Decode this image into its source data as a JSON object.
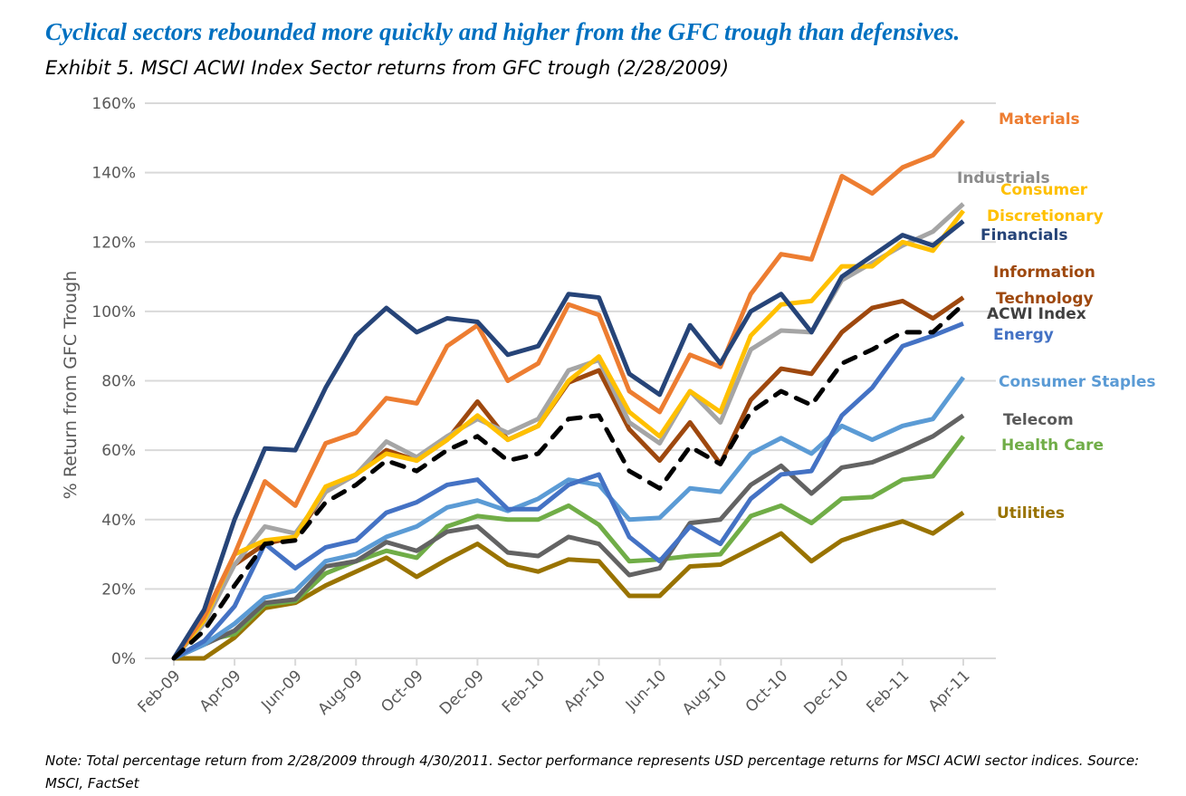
{
  "headline": "Cyclical sectors rebounded more quickly and higher from the GFC trough than defensives.",
  "subtitle": "Exhibit 5. MSCI ACWI Index Sector returns from GFC trough (2/28/2009)",
  "note": "Note: Total percentage return from 2/28/2009 through 4/30/2011.  Sector performance represents USD percentage returns for MSCI ACWI sector indices.  Source: MSCI, FactSet",
  "chart_data": {
    "type": "line",
    "title": "",
    "xlabel": "",
    "ylabel": "% Return from GFC Trough",
    "ylim": [
      0,
      160
    ],
    "yticks": [
      "0%",
      "20%",
      "40%",
      "60%",
      "80%",
      "100%",
      "120%",
      "140%",
      "160%"
    ],
    "grid": true,
    "legend": "direct labels at right",
    "x": [
      "Feb-09",
      "Mar-09",
      "Apr-09",
      "May-09",
      "Jun-09",
      "Jul-09",
      "Aug-09",
      "Sep-09",
      "Oct-09",
      "Nov-09",
      "Dec-09",
      "Jan-10",
      "Feb-10",
      "Mar-10",
      "Apr-10",
      "May-10",
      "Jun-10",
      "Jul-10",
      "Aug-10",
      "Sep-10",
      "Oct-10",
      "Nov-10",
      "Dec-10",
      "Jan-11",
      "Feb-11",
      "Mar-11",
      "Apr-11"
    ],
    "xticks": [
      "Feb-09",
      "Apr-09",
      "Jun-09",
      "Aug-09",
      "Oct-09",
      "Dec-09",
      "Feb-10",
      "Apr-10",
      "Jun-10",
      "Aug-10",
      "Oct-10",
      "Dec-10",
      "Feb-11",
      "Apr-11"
    ],
    "series": [
      {
        "name": "Materials",
        "label_lines": [
          "Materials"
        ],
        "color": "#ED7D31",
        "label_color": "#ED7D31",
        "values": [
          0,
          12,
          30,
          51,
          44,
          62,
          65,
          75,
          73.5,
          90,
          96,
          80,
          85,
          102,
          99,
          77,
          71,
          87.5,
          84,
          105,
          116.5,
          115,
          139,
          134,
          141.5,
          145,
          155
        ]
      },
      {
        "name": "Industrials",
        "label_lines": [
          "Industrials"
        ],
        "color": "#A5A5A5",
        "label_color": "#8C8C8C",
        "values": [
          0,
          10,
          27,
          38,
          36,
          48,
          53,
          62.5,
          58,
          64,
          69,
          65,
          69,
          83,
          86,
          68,
          62,
          77,
          68,
          89,
          94.5,
          94,
          109,
          114,
          119,
          123,
          131
        ]
      },
      {
        "name": "Consumer Discretionary",
        "label_lines": [
          "Consumer",
          "Discretionary"
        ],
        "color": "#FFC000",
        "label_color": "#FFC000",
        "values": [
          0,
          11,
          30,
          34,
          35,
          49.5,
          53,
          59,
          57,
          63,
          70,
          63,
          67,
          80,
          87,
          71,
          64,
          77,
          71,
          93,
          102,
          103,
          113,
          113,
          120,
          117.5,
          129
        ]
      },
      {
        "name": "Financials",
        "label_lines": [
          "Financials"
        ],
        "color": "#264478",
        "label_color": "#264478",
        "values": [
          0,
          14,
          40,
          60.5,
          60,
          78,
          93,
          101,
          94,
          98,
          97,
          87.5,
          90,
          105,
          104,
          82,
          76,
          96,
          85,
          100,
          105,
          94,
          110,
          116,
          122,
          119,
          126
        ]
      },
      {
        "name": "Information Technology",
        "label_lines": [
          "Information",
          "Technology"
        ],
        "color": "#9E480E",
        "label_color": "#9E480E",
        "values": [
          0,
          12,
          27,
          33,
          35,
          48,
          53,
          60,
          57,
          63,
          74,
          63,
          67,
          79.5,
          83,
          66,
          57,
          68,
          56,
          74.5,
          83.5,
          82,
          94,
          101,
          103,
          98,
          104
        ]
      },
      {
        "name": "ACWI Index",
        "label_lines": [
          "ACWI Index"
        ],
        "color": "#000000",
        "label_color": "#404040",
        "dashed": true,
        "values": [
          0,
          8,
          21,
          33,
          34,
          45,
          50,
          57,
          54,
          60,
          64,
          57,
          59,
          69,
          70,
          54,
          49,
          61,
          56,
          71,
          77,
          73,
          85,
          89,
          94,
          94,
          102
        ]
      },
      {
        "name": "Energy",
        "label_lines": [
          "Energy"
        ],
        "color": "#4472C4",
        "label_color": "#4472C4",
        "values": [
          0,
          5,
          15,
          33,
          26,
          32,
          34,
          42,
          45,
          50,
          51.5,
          43,
          43,
          50,
          53,
          35,
          28,
          38,
          33,
          46,
          53,
          54,
          70,
          78,
          90,
          93,
          96.5
        ]
      },
      {
        "name": "Consumer Staples",
        "label_lines": [
          "Consumer Staples"
        ],
        "color": "#5B9BD5",
        "label_color": "#5B9BD5",
        "values": [
          0,
          4,
          10,
          17.5,
          19.5,
          28,
          30,
          35,
          38,
          43.5,
          45.5,
          42.5,
          46,
          51.5,
          50,
          40,
          40.5,
          49,
          48,
          59,
          63.5,
          59,
          67,
          63,
          67,
          69,
          81
        ]
      },
      {
        "name": "Telecom",
        "label_lines": [
          "Telecom"
        ],
        "color": "#636363",
        "label_color": "#595959",
        "values": [
          0,
          4,
          8,
          16,
          17,
          26.5,
          28,
          33.5,
          31,
          36.5,
          38,
          30.5,
          29.5,
          35,
          33,
          24,
          26,
          39,
          40,
          50,
          55.5,
          47.5,
          55,
          56.5,
          60,
          64,
          70
        ]
      },
      {
        "name": "Health Care",
        "label_lines": [
          "Health Care"
        ],
        "color": "#70AD47",
        "label_color": "#70AD47",
        "values": [
          0,
          5,
          7,
          15.5,
          16.5,
          24.5,
          28,
          31,
          29,
          38,
          41,
          40,
          40,
          44,
          38.5,
          28,
          28.5,
          29.5,
          30,
          41,
          44,
          39,
          46,
          46.5,
          51.5,
          52.5,
          64
        ]
      },
      {
        "name": "Utilities",
        "label_lines": [
          "Utilities"
        ],
        "color": "#997300",
        "label_color": "#997300",
        "values": [
          0,
          0,
          6,
          14.5,
          16,
          21,
          25,
          29,
          23.5,
          28.5,
          33,
          27,
          25,
          28.5,
          28,
          18,
          18,
          26.5,
          27,
          31.5,
          36,
          28,
          34,
          37,
          39.5,
          36,
          42
        ]
      }
    ]
  }
}
